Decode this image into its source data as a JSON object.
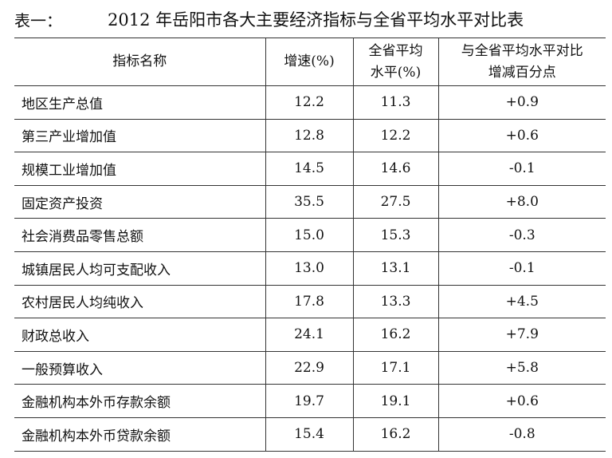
{
  "title": {
    "label": "表一：",
    "text": "2012 年岳阳市各大主要经济指标与全省平均水平对比表"
  },
  "table": {
    "header": [
      [
        "指标名称"
      ],
      [
        "增速(%)"
      ],
      [
        "全省平均",
        "水平(%)"
      ],
      [
        "与全省平均水平对比",
        "增减百分点"
      ]
    ],
    "rows": [
      [
        "地区生产总值",
        "12.2",
        "11.3",
        "+0.9"
      ],
      [
        "第三产业增加值",
        "12.8",
        "12.2",
        "+0.6"
      ],
      [
        "规模工业增加值",
        "14.5",
        "14.6",
        "-0.1"
      ],
      [
        "固定资产投资",
        "35.5",
        "27.5",
        "+8.0"
      ],
      [
        "社会消费品零售总额",
        "15.0",
        "15.3",
        "-0.3"
      ],
      [
        "城镇居民人均可支配收入",
        "13.0",
        "13.1",
        "-0.1"
      ],
      [
        "农村居民人均纯收入",
        "17.8",
        "13.3",
        "+4.5"
      ],
      [
        "财政总收入",
        "24.1",
        "16.2",
        "+7.9"
      ],
      [
        "一般预算收入",
        "22.9",
        "17.1",
        "+5.8"
      ],
      [
        "金融机构本外币存款余额",
        "19.7",
        "19.1",
        "+0.6"
      ],
      [
        "金融机构本外币贷款余额",
        "15.4",
        "16.2",
        "-0.8"
      ]
    ]
  }
}
